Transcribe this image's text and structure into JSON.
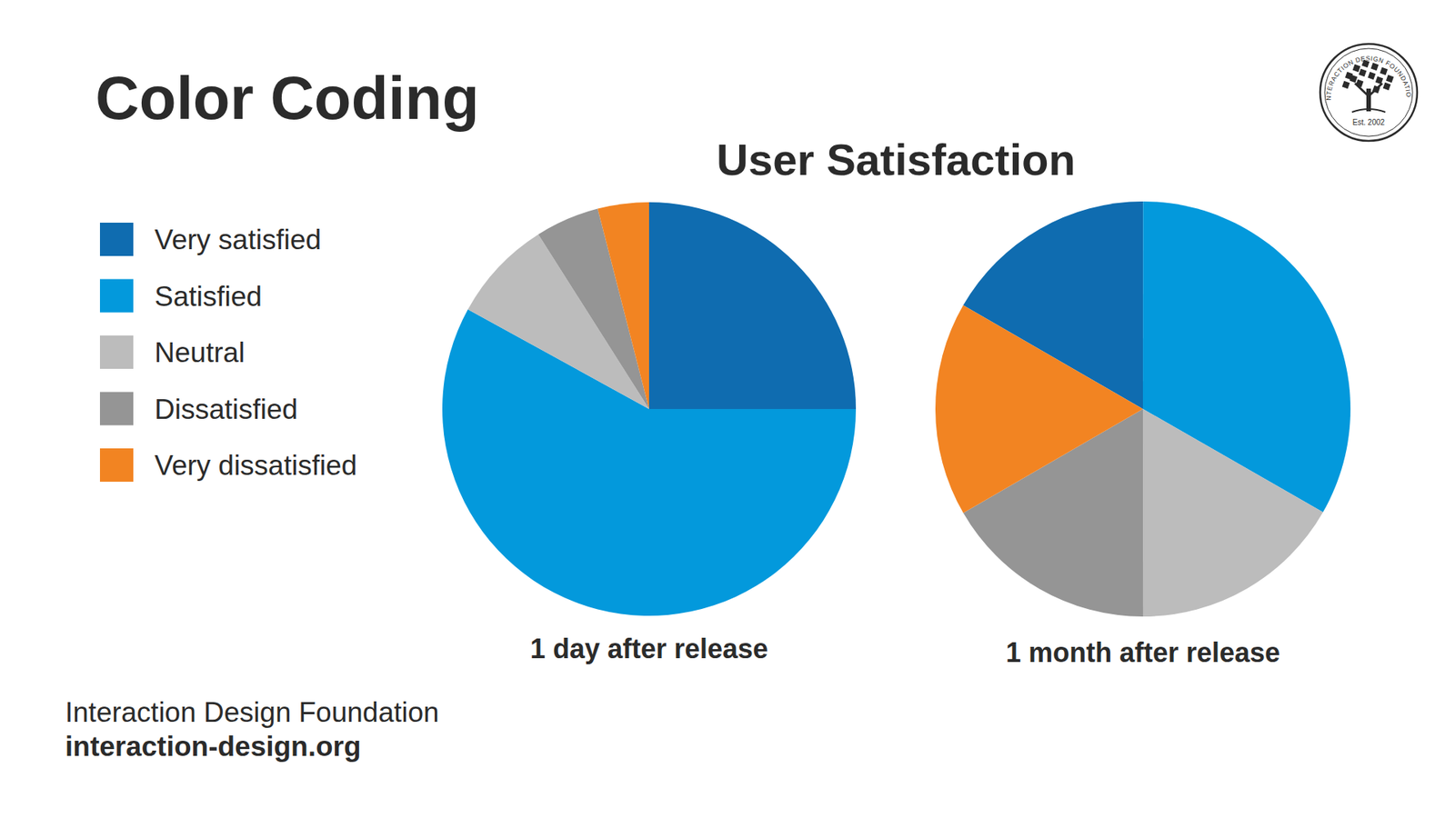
{
  "title": "Color Coding",
  "heading": "User Satisfaction",
  "chart_data": [
    {
      "type": "pie",
      "title": "1 day after release",
      "categories": [
        "Very satisfied",
        "Satisfied",
        "Neutral",
        "Dissatisfied",
        "Very dissatisfied"
      ],
      "values": [
        25,
        58,
        8,
        5,
        4
      ],
      "colors": [
        "#0f6cb0",
        "#0399dc",
        "#bcbcbc",
        "#959595",
        "#f28422"
      ],
      "legend": "left"
    },
    {
      "type": "pie",
      "title": "1 month after release",
      "categories": [
        "Very satisfied",
        "Satisfied",
        "Neutral",
        "Dissatisfied",
        "Very dissatisfied"
      ],
      "values": [
        16.7,
        33.3,
        16.7,
        16.7,
        16.7
      ],
      "colors": [
        "#0f6cb0",
        "#0399dc",
        "#bcbcbc",
        "#959595",
        "#f28422"
      ]
    }
  ],
  "footer": {
    "organization": "Interaction Design Foundation",
    "website": "interaction-design.org"
  },
  "logo": {
    "name": "INTERACTION DESIGN FOUNDATION",
    "established": "Est. 2002"
  }
}
